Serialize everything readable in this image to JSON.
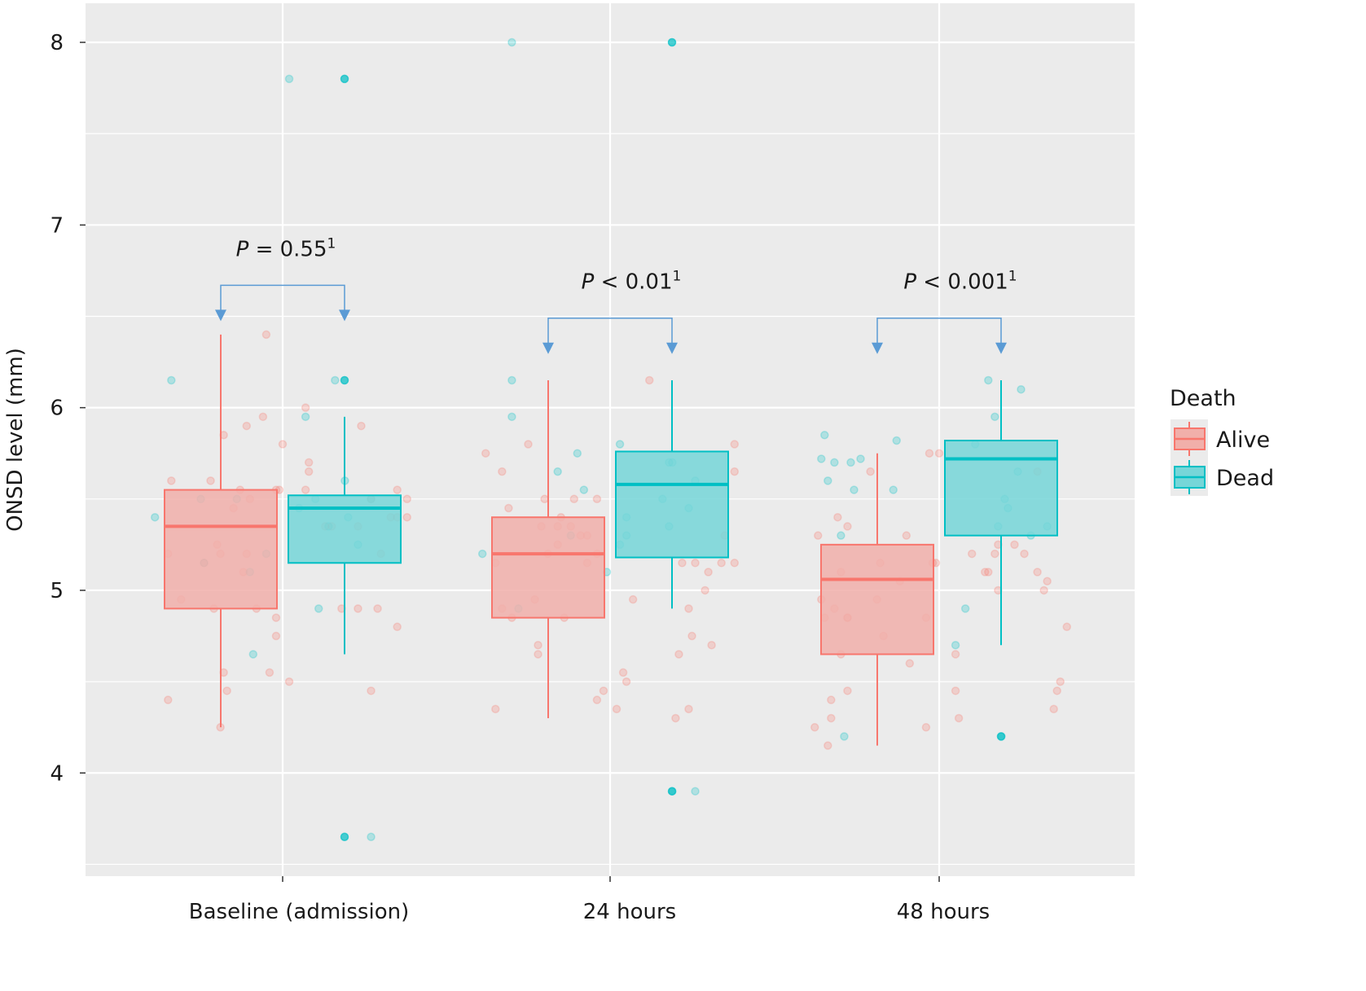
{
  "chart_data": {
    "type": "box",
    "title": "",
    "xlabel": "",
    "ylabel": "ONSD level (mm)",
    "ylim": [
      3.435,
      8.214
    ],
    "yticks": [
      4,
      5,
      6,
      7,
      8
    ],
    "ytick_labels": [
      "4",
      "5",
      "6",
      "7",
      "8"
    ],
    "grid": true,
    "categories": [
      "Baseline (admission)",
      "24 hours",
      "48 hours"
    ],
    "legend": {
      "title": "Death",
      "position": "right",
      "entries": [
        {
          "name": "Alive",
          "color": "#F8766D"
        },
        {
          "name": "Dead",
          "color": "#00BFC4"
        }
      ]
    },
    "colors": {
      "alive": "#F8766D",
      "dead": "#00BFC4",
      "alive_fill": "#F1AFAA",
      "dead_fill": "#76D6D8",
      "bracket": "#5B9BD5",
      "panel": "#EBEBEB",
      "grid": "#FFFFFF"
    },
    "boxes": [
      {
        "category": "Baseline (admission)",
        "group": "Alive",
        "whisker_low": 4.25,
        "q1": 4.9,
        "median": 5.35,
        "q3": 5.55,
        "whisker_high": 6.4
      },
      {
        "category": "Baseline (admission)",
        "group": "Dead",
        "whisker_low": 4.65,
        "q1": 5.15,
        "median": 5.45,
        "q3": 5.52,
        "whisker_high": 5.95
      },
      {
        "category": "24 hours",
        "group": "Alive",
        "whisker_low": 4.3,
        "q1": 4.85,
        "median": 5.2,
        "q3": 5.4,
        "whisker_high": 6.15
      },
      {
        "category": "24 hours",
        "group": "Dead",
        "whisker_low": 4.9,
        "q1": 5.18,
        "median": 5.58,
        "q3": 5.76,
        "whisker_high": 6.15
      },
      {
        "category": "48 hours",
        "group": "Alive",
        "whisker_low": 4.15,
        "q1": 4.65,
        "median": 5.06,
        "q3": 5.25,
        "whisker_high": 5.75
      },
      {
        "category": "48 hours",
        "group": "Dead",
        "whisker_low": 4.7,
        "q1": 5.3,
        "median": 5.72,
        "q3": 5.82,
        "whisker_high": 6.15
      }
    ],
    "outliers": [
      {
        "category": "Baseline (admission)",
        "group": "Dead",
        "values": [
          7.8,
          6.15,
          3.65
        ]
      },
      {
        "category": "24 hours",
        "group": "Dead",
        "values": [
          8.0,
          3.9
        ]
      },
      {
        "category": "48 hours",
        "group": "Dead",
        "values": [
          4.2
        ]
      }
    ],
    "jitter_points": [
      {
        "category": "Baseline (admission)",
        "group": "Alive",
        "points": [
          [
            -0.35,
            5.2
          ],
          [
            -0.35,
            4.4
          ],
          [
            -0.34,
            5.6
          ],
          [
            -0.31,
            4.95
          ],
          [
            -0.24,
            5.15
          ],
          [
            -0.22,
            5.6
          ],
          [
            -0.21,
            4.9
          ],
          [
            -0.2,
            5.25
          ],
          [
            -0.19,
            5.2
          ],
          [
            -0.19,
            4.25
          ],
          [
            -0.18,
            5.85
          ],
          [
            -0.18,
            4.55
          ],
          [
            -0.17,
            4.45
          ],
          [
            -0.15,
            5.45
          ],
          [
            -0.13,
            5.55
          ],
          [
            -0.12,
            5.1
          ],
          [
            -0.11,
            5.2
          ],
          [
            -0.11,
            5.9
          ],
          [
            -0.1,
            5.5
          ],
          [
            -0.08,
            4.9
          ],
          [
            -0.06,
            5.95
          ],
          [
            -0.05,
            6.4
          ],
          [
            -0.04,
            4.55
          ],
          [
            -0.02,
            5.55
          ],
          [
            -0.01,
            5.55
          ],
          [
            0.0,
            5.8
          ],
          [
            -0.02,
            4.75
          ],
          [
            -0.02,
            4.85
          ],
          [
            0.02,
            4.5
          ]
        ]
      },
      {
        "category": "Baseline (admission)",
        "group": "Dead",
        "points": [
          [
            -0.39,
            5.4
          ],
          [
            -0.34,
            6.15
          ],
          [
            -0.25,
            5.5
          ],
          [
            -0.24,
            5.15
          ],
          [
            -0.14,
            5.5
          ],
          [
            -0.1,
            5.1
          ],
          [
            -0.09,
            4.65
          ],
          [
            -0.05,
            5.2
          ],
          [
            0.02,
            7.8
          ],
          [
            0.05,
            5.45
          ],
          [
            0.07,
            5.95
          ],
          [
            0.1,
            5.5
          ],
          [
            0.11,
            4.9
          ],
          [
            0.14,
            5.35
          ],
          [
            0.16,
            6.15
          ],
          [
            0.19,
            5.6
          ],
          [
            0.23,
            5.25
          ],
          [
            0.27,
            5.5
          ],
          [
            0.27,
            3.65
          ],
          [
            0.2,
            5.4
          ]
        ]
      },
      {
        "category": "Baseline (admission)",
        "group": "Alive-right",
        "points": [
          [
            0.07,
            6.0
          ],
          [
            0.08,
            5.7
          ],
          [
            0.07,
            5.55
          ],
          [
            0.08,
            5.65
          ],
          [
            0.13,
            5.35
          ],
          [
            0.15,
            5.35
          ],
          [
            0.18,
            4.9
          ],
          [
            0.23,
            5.35
          ],
          [
            0.23,
            4.9
          ],
          [
            0.24,
            5.9
          ],
          [
            0.27,
            4.45
          ],
          [
            0.27,
            5.5
          ],
          [
            0.29,
            4.9
          ],
          [
            0.3,
            5.2
          ],
          [
            0.33,
            5.4
          ],
          [
            0.35,
            5.4
          ],
          [
            0.35,
            5.55
          ],
          [
            0.38,
            5.5
          ],
          [
            0.38,
            5.4
          ],
          [
            0.35,
            4.8
          ]
        ]
      },
      {
        "category": "24 hours",
        "group": "Alive",
        "points": [
          [
            -0.38,
            5.75
          ],
          [
            -0.35,
            4.35
          ],
          [
            -0.35,
            5.15
          ],
          [
            -0.33,
            5.65
          ],
          [
            -0.33,
            4.9
          ],
          [
            -0.31,
            5.45
          ],
          [
            -0.3,
            4.85
          ],
          [
            -0.25,
            5.8
          ],
          [
            -0.23,
            4.95
          ],
          [
            -0.22,
            4.7
          ],
          [
            -0.22,
            4.65
          ],
          [
            -0.21,
            5.35
          ],
          [
            -0.2,
            5.5
          ],
          [
            -0.19,
            5.2
          ],
          [
            -0.16,
            5.25
          ],
          [
            -0.16,
            5.35
          ],
          [
            -0.15,
            5.4
          ],
          [
            -0.14,
            4.85
          ],
          [
            -0.12,
            5.35
          ],
          [
            -0.11,
            5.5
          ],
          [
            -0.09,
            5.3
          ],
          [
            -0.07,
            5.3
          ],
          [
            -0.07,
            5.15
          ],
          [
            -0.04,
            5.5
          ],
          [
            -0.04,
            5.2
          ]
        ]
      },
      {
        "category": "24 hours",
        "group": "Dead",
        "points": [
          [
            -0.39,
            5.2
          ],
          [
            -0.3,
            5.95
          ],
          [
            -0.28,
            4.9
          ],
          [
            -0.16,
            5.65
          ],
          [
            -0.12,
            5.3
          ],
          [
            -0.1,
            5.75
          ],
          [
            -0.08,
            5.55
          ],
          [
            -0.01,
            5.1
          ],
          [
            -0.3,
            8.0
          ],
          [
            -0.3,
            6.15
          ],
          [
            0.03,
            5.8
          ],
          [
            0.03,
            5.25
          ],
          [
            0.05,
            5.3
          ],
          [
            0.05,
            5.4
          ],
          [
            0.16,
            5.5
          ],
          [
            0.18,
            5.7
          ],
          [
            0.18,
            5.35
          ],
          [
            0.19,
            5.7
          ],
          [
            0.24,
            5.45
          ],
          [
            0.26,
            5.6
          ],
          [
            0.19,
            3.9
          ],
          [
            0.26,
            3.9
          ]
        ]
      },
      {
        "category": "24 hours",
        "group": "Alive-right",
        "points": [
          [
            -0.04,
            4.4
          ],
          [
            -0.02,
            4.45
          ],
          [
            0.02,
            4.35
          ],
          [
            0.04,
            4.55
          ],
          [
            0.05,
            4.5
          ],
          [
            0.07,
            4.95
          ],
          [
            0.12,
            6.15
          ],
          [
            0.21,
            4.65
          ],
          [
            0.2,
            4.3
          ],
          [
            0.24,
            4.35
          ],
          [
            0.24,
            4.9
          ],
          [
            0.25,
            4.75
          ],
          [
            0.26,
            5.15
          ],
          [
            0.22,
            5.15
          ],
          [
            0.29,
            5.0
          ],
          [
            0.3,
            5.1
          ],
          [
            0.31,
            4.7
          ],
          [
            0.34,
            5.15
          ],
          [
            0.35,
            5.3
          ],
          [
            0.38,
            5.8
          ],
          [
            0.38,
            5.65
          ],
          [
            0.38,
            5.15
          ]
        ]
      },
      {
        "category": "48 hours",
        "group": "Alive",
        "points": [
          [
            -0.37,
            5.3
          ],
          [
            -0.38,
            4.25
          ],
          [
            -0.36,
            4.95
          ],
          [
            -0.35,
            4.85
          ],
          [
            -0.34,
            4.15
          ],
          [
            -0.33,
            4.4
          ],
          [
            -0.33,
            4.3
          ],
          [
            -0.32,
            4.9
          ],
          [
            -0.31,
            5.4
          ],
          [
            -0.3,
            4.65
          ],
          [
            -0.3,
            5.1
          ],
          [
            -0.28,
            4.85
          ],
          [
            -0.28,
            4.45
          ],
          [
            -0.28,
            5.35
          ],
          [
            -0.28,
            4.85
          ],
          [
            -0.21,
            5.65
          ],
          [
            -0.19,
            4.95
          ],
          [
            -0.18,
            5.15
          ],
          [
            -0.17,
            4.75
          ],
          [
            -0.12,
            5.05
          ],
          [
            -0.1,
            5.3
          ],
          [
            -0.09,
            4.6
          ],
          [
            -0.04,
            4.85
          ],
          [
            -0.04,
            4.25
          ],
          [
            -0.03,
            5.75
          ],
          [
            -0.02,
            5.15
          ],
          [
            -0.01,
            5.15
          ]
        ]
      },
      {
        "category": "48 hours",
        "group": "Dead",
        "points": [
          [
            -0.35,
            5.85
          ],
          [
            -0.36,
            5.72
          ],
          [
            -0.34,
            5.6
          ],
          [
            -0.32,
            5.7
          ],
          [
            -0.3,
            5.3
          ],
          [
            -0.29,
            4.2
          ],
          [
            -0.27,
            5.7
          ],
          [
            -0.26,
            5.55
          ],
          [
            -0.24,
            5.72
          ],
          [
            -0.13,
            5.82
          ],
          [
            -0.14,
            5.55
          ],
          [
            0.05,
            4.7
          ],
          [
            0.08,
            4.9
          ],
          [
            0.11,
            5.8
          ],
          [
            0.17,
            5.95
          ],
          [
            0.15,
            6.15
          ],
          [
            0.25,
            6.1
          ],
          [
            0.24,
            5.65
          ],
          [
            0.18,
            5.35
          ],
          [
            0.2,
            5.5
          ],
          [
            0.21,
            5.45
          ],
          [
            0.33,
            5.35
          ],
          [
            0.28,
            5.3
          ],
          [
            0.19,
            4.2
          ]
        ]
      },
      {
        "category": "48 hours",
        "group": "Alive-right",
        "points": [
          [
            0.0,
            5.75
          ],
          [
            0.05,
            4.65
          ],
          [
            0.05,
            4.45
          ],
          [
            0.06,
            4.3
          ],
          [
            0.1,
            5.2
          ],
          [
            0.14,
            5.1
          ],
          [
            0.15,
            5.1
          ],
          [
            0.17,
            5.2
          ],
          [
            0.18,
            5.25
          ],
          [
            0.18,
            5.0
          ],
          [
            0.23,
            5.25
          ],
          [
            0.26,
            5.2
          ],
          [
            0.3,
            5.1
          ],
          [
            0.33,
            5.05
          ],
          [
            0.32,
            5.0
          ],
          [
            0.35,
            4.35
          ],
          [
            0.36,
            4.45
          ],
          [
            0.37,
            4.5
          ],
          [
            0.39,
            4.8
          ],
          [
            0.3,
            5.65
          ]
        ]
      }
    ],
    "comparisons": [
      {
        "category": "Baseline (admission)",
        "label_prefix": "P",
        "label_op": " = ",
        "label_value": "0.55",
        "superscript": "1",
        "bracket_y": 6.67
      },
      {
        "category": "24 hours",
        "label_prefix": "P",
        "label_op": " < ",
        "label_value": "0.01",
        "superscript": "1",
        "bracket_y": 6.49
      },
      {
        "category": "48 hours",
        "label_prefix": "P",
        "label_op": " < ",
        "label_value": "0.001",
        "superscript": "1",
        "bracket_y": 6.49
      }
    ]
  }
}
